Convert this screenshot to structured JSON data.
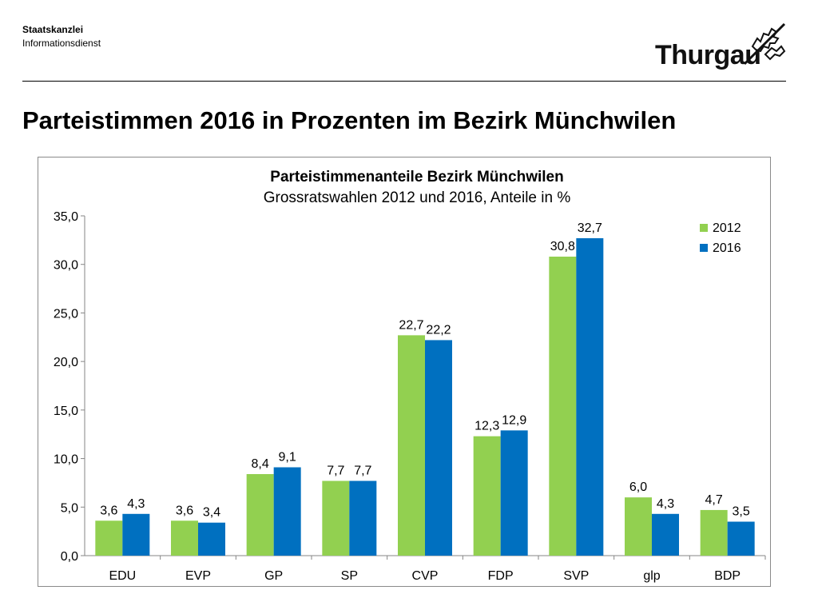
{
  "header": {
    "org_name": "Staatskanzlei",
    "org_sub": "Informationsdienst",
    "logo_text": "Thurgau"
  },
  "page_title": "Parteistimmen 2016 in Prozenten im Bezirk Münchwilen",
  "colors": {
    "series_2012": "#92d050",
    "series_2016": "#0070c0"
  },
  "chart_data": {
    "type": "bar",
    "title": "Parteistimmenanteile Bezirk Münchwilen",
    "subtitle": "Grossratswahlen 2012 und 2016, Anteile in %",
    "categories": [
      "EDU",
      "EVP",
      "GP",
      "SP",
      "CVP",
      "FDP",
      "SVP",
      "glp",
      "BDP"
    ],
    "series": [
      {
        "name": "2012",
        "values": [
          3.6,
          3.6,
          8.4,
          7.7,
          22.7,
          12.3,
          30.8,
          6.0,
          4.7
        ]
      },
      {
        "name": "2016",
        "values": [
          4.3,
          3.4,
          9.1,
          7.7,
          22.2,
          12.9,
          32.7,
          4.3,
          3.5
        ]
      }
    ],
    "data_labels": [
      [
        "3,6",
        "3,6",
        "8,4",
        "7,7",
        "22,7",
        "12,3",
        "30,8",
        "6,0",
        "4,7"
      ],
      [
        "4,3",
        "3,4",
        "9,1",
        "7,7",
        "22,2",
        "12,9",
        "32,7",
        "4,3",
        "3,5"
      ]
    ],
    "ylim": [
      0,
      35
    ],
    "yticks": [
      "0,0",
      "5,0",
      "10,0",
      "15,0",
      "20,0",
      "25,0",
      "30,0",
      "35,0"
    ],
    "xlabel": "",
    "ylabel": "",
    "grid": false,
    "legend_position": "top-right"
  }
}
